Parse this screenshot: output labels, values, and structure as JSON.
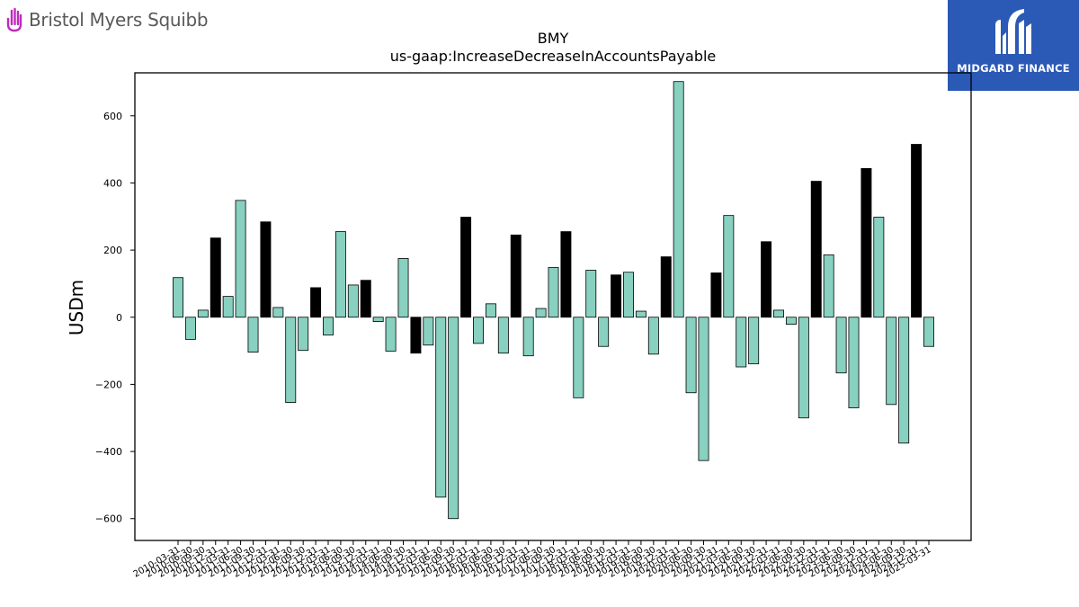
{
  "brand_left": {
    "name": "Bristol Myers Squibb",
    "mark_color": "#be2bbb",
    "text_color": "#595959"
  },
  "brand_right": {
    "name": "MIDGARD FINANCE",
    "background": "#2b59b6"
  },
  "chart_data": {
    "type": "bar",
    "title": "BMY",
    "subtitle": "us-gaap:IncreaseDecreaseInAccountsPayable",
    "xlabel": "",
    "ylabel": "USDm",
    "ylim": [
      -665,
      728
    ],
    "yticks": [
      -600,
      -400,
      -200,
      0,
      200,
      400,
      600
    ],
    "grid": false,
    "colors": {
      "quarter": "#88d0c0",
      "year_end": "#000000",
      "edge": "#000000"
    },
    "categories": [
      "2010-03-31",
      "2010-06-30",
      "2010-09-30",
      "2010-12-31",
      "2011-03-31",
      "2011-06-30",
      "2011-09-30",
      "2011-12-31",
      "2012-03-31",
      "2012-06-30",
      "2012-09-30",
      "2012-12-31",
      "2013-03-31",
      "2013-06-30",
      "2013-09-30",
      "2013-12-31",
      "2014-03-31",
      "2014-06-30",
      "2014-09-30",
      "2014-12-31",
      "2015-03-31",
      "2015-06-30",
      "2015-09-30",
      "2015-12-31",
      "2016-03-31",
      "2016-06-30",
      "2016-09-30",
      "2016-12-31",
      "2017-03-31",
      "2017-06-30",
      "2017-09-30",
      "2017-12-31",
      "2018-03-31",
      "2018-06-30",
      "2018-09-30",
      "2018-12-31",
      "2019-03-31",
      "2019-06-30",
      "2019-09-30",
      "2019-12-31",
      "2020-03-31",
      "2020-06-30",
      "2020-09-30",
      "2020-12-31",
      "2021-03-31",
      "2021-06-30",
      "2021-09-30",
      "2021-12-31",
      "2022-03-31",
      "2022-06-30",
      "2022-09-30",
      "2022-12-31",
      "2023-03-31",
      "2023-06-30",
      "2023-09-30",
      "2023-12-31",
      "2024-03-31",
      "2024-06-30",
      "2024-09-30",
      "2024-12-31",
      "2025-03-31"
    ],
    "values": [
      118,
      -66,
      21,
      236,
      62,
      348,
      -104,
      284,
      29,
      -254,
      -99,
      88,
      -53,
      255,
      96,
      110,
      -13,
      -101,
      175,
      -107,
      -83,
      -536,
      -600,
      298,
      -78,
      40,
      -107,
      245,
      -115,
      26,
      148,
      255,
      -240,
      140,
      -87,
      126,
      134,
      18,
      -110,
      180,
      702,
      -225,
      -427,
      132,
      303,
      -148,
      -139,
      225,
      21,
      -21,
      -300,
      405,
      186,
      -166,
      -270,
      443,
      298,
      -260,
      -375,
      515,
      -87
    ],
    "year_end": [
      false,
      false,
      false,
      true,
      false,
      false,
      false,
      true,
      false,
      false,
      false,
      true,
      false,
      false,
      false,
      true,
      false,
      false,
      false,
      true,
      false,
      false,
      false,
      true,
      false,
      false,
      false,
      true,
      false,
      false,
      false,
      true,
      false,
      false,
      false,
      true,
      false,
      false,
      false,
      true,
      false,
      false,
      false,
      true,
      false,
      false,
      false,
      true,
      false,
      false,
      false,
      true,
      false,
      false,
      false,
      true,
      false,
      false,
      false,
      true,
      false
    ]
  }
}
